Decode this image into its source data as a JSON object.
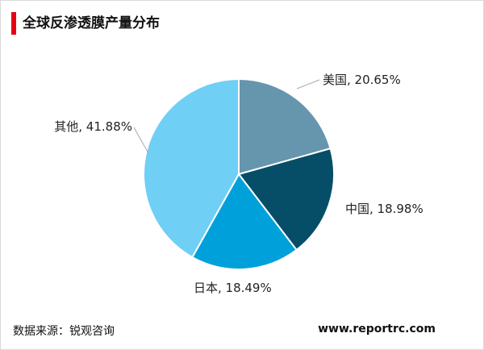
{
  "header": {
    "title": "全球反渗透膜产量分布"
  },
  "footer": {
    "source": "数据来源：锐观咨询",
    "website": "www.reportrc.com"
  },
  "colors": {
    "accent_bar": "#e60012"
  },
  "chart_data": {
    "type": "pie",
    "title": "全球反渗透膜产量分布",
    "start_angle_deg": 0,
    "direction": "clockwise",
    "slices": [
      {
        "label": "美国, 20.65%",
        "name": "美国",
        "value": 20.65,
        "color": "#6596ad"
      },
      {
        "label": "中国, 18.98%",
        "name": "中国",
        "value": 18.98,
        "color": "#064e68"
      },
      {
        "label": "日本, 18.49%",
        "name": "日本",
        "value": 18.49,
        "color": "#00a1db"
      },
      {
        "label": "其他, 41.88%",
        "name": "其他",
        "value": 41.88,
        "color": "#6fcff5"
      }
    ]
  }
}
